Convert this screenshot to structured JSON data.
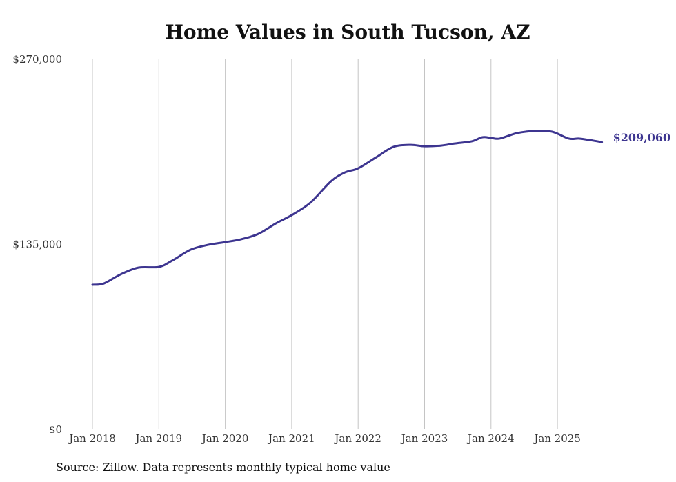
{
  "chart_data": {
    "type": "line",
    "title": "Home Values in South Tucson, AZ",
    "source": "Source: Zillow. Data represents monthly typical home value",
    "xlabel": "",
    "ylabel": "",
    "ylim": [
      0,
      270000
    ],
    "yticks": [
      0,
      135000,
      270000
    ],
    "ytick_labels": [
      "$0",
      "$135,000",
      "$270,000"
    ],
    "xlim": [
      2018,
      2025.67
    ],
    "xticks": [
      2018,
      2019,
      2020,
      2021,
      2022,
      2023,
      2024,
      2025
    ],
    "xtick_labels": [
      "Jan 2018",
      "Jan 2019",
      "Jan 2020",
      "Jan 2021",
      "Jan 2022",
      "Jan 2023",
      "Jan 2024",
      "Jan 2025"
    ],
    "grid": "vertical",
    "series": [
      {
        "name": "Typical home value",
        "color": "#3d3590",
        "x": [
          2018,
          2018.17,
          2018.42,
          2018.69,
          2019,
          2019.2,
          2019.48,
          2019.74,
          2020,
          2020.24,
          2020.5,
          2020.76,
          2021,
          2021.28,
          2021.59,
          2021.8,
          2022,
          2022.27,
          2022.53,
          2022.79,
          2023,
          2023.25,
          2023.45,
          2023.71,
          2023.87,
          2024,
          2024.13,
          2024.39,
          2024.65,
          2024.92,
          2025.17,
          2025.33,
          2025.54,
          2025.67
        ],
        "values": [
          105100,
          106000,
          112600,
          117600,
          118100,
          122700,
          130700,
          134200,
          136200,
          138300,
          142300,
          149800,
          155900,
          164900,
          180500,
          187000,
          190000,
          198000,
          205600,
          207100,
          206100,
          206600,
          208100,
          209700,
          212700,
          212200,
          211700,
          215700,
          217200,
          216700,
          211700,
          211700,
          210200,
          209060
        ]
      }
    ],
    "end_label": "$209,060"
  }
}
